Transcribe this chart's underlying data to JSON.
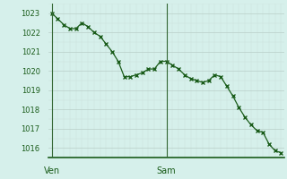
{
  "y_values": [
    1023.0,
    1022.7,
    1022.4,
    1022.2,
    1022.2,
    1022.5,
    1022.3,
    1022.0,
    1021.8,
    1021.4,
    1021.0,
    1020.5,
    1019.7,
    1019.7,
    1019.8,
    1019.9,
    1020.1,
    1020.1,
    1020.5,
    1020.5,
    1020.3,
    1020.1,
    1019.8,
    1019.6,
    1019.5,
    1019.4,
    1019.5,
    1019.8,
    1019.7,
    1019.2,
    1018.7,
    1018.1,
    1017.6,
    1017.2,
    1016.9,
    1016.8,
    1016.2,
    1015.85,
    1015.75
  ],
  "n_points": 39,
  "xtick_labels": [
    "Ven",
    "Sam"
  ],
  "xtick_positions": [
    0,
    19
  ],
  "vline_positions": [
    0,
    19
  ],
  "ylim": [
    1015.5,
    1023.5
  ],
  "yticks": [
    1016,
    1017,
    1018,
    1019,
    1020,
    1021,
    1022,
    1023
  ],
  "line_color": "#1a5c1a",
  "marker": "x",
  "marker_size": 3.5,
  "marker_linewidth": 1.0,
  "line_width": 0.9,
  "background_color": "#d6f0eb",
  "grid_color": "#b8cec8",
  "grid_minor_color": "#cce0db",
  "vline_color": "#336633",
  "axis_color": "#1a5c1a",
  "tick_fontsize": 6,
  "xlabel_fontsize": 7
}
